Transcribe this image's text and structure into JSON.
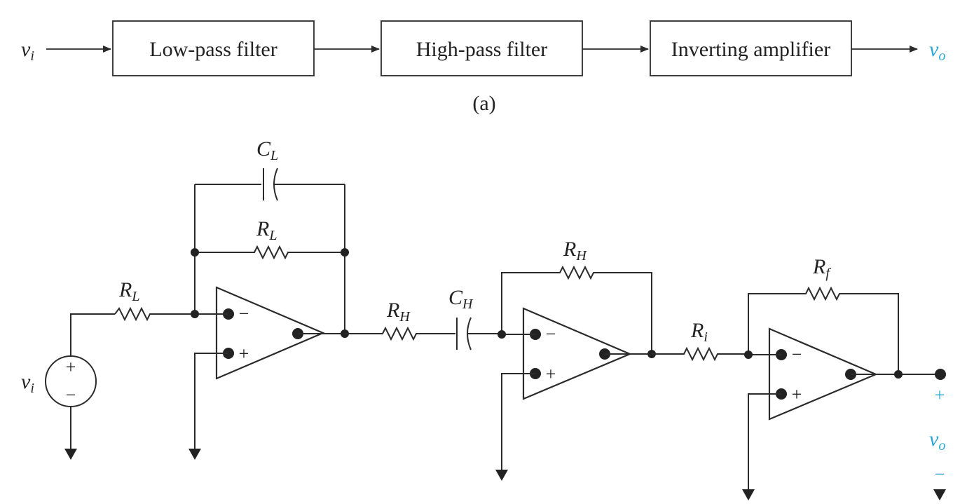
{
  "accent_color": "#29a8d6",
  "part_a": {
    "input_symbol": "v",
    "input_sub": "i",
    "blocks": [
      {
        "label": "Low-pass filter"
      },
      {
        "label": "High-pass filter"
      },
      {
        "label": "Inverting amplifier"
      }
    ],
    "output_symbol": "v",
    "output_sub": "o",
    "caption": "(a)"
  },
  "part_b": {
    "source": {
      "symbol": "v",
      "sub": "i",
      "plus": "+",
      "minus": "−"
    },
    "components": {
      "CL": {
        "symbol": "C",
        "sub": "L"
      },
      "RL_feedback": {
        "symbol": "R",
        "sub": "L"
      },
      "RL_input": {
        "symbol": "R",
        "sub": "L"
      },
      "RH_series": {
        "symbol": "R",
        "sub": "H"
      },
      "CH": {
        "symbol": "C",
        "sub": "H"
      },
      "RH_feedback": {
        "symbol": "R",
        "sub": "H"
      },
      "Ri": {
        "symbol": "R",
        "sub": "i"
      },
      "Rf": {
        "symbol": "R",
        "sub": "f"
      }
    },
    "opamp_signs": {
      "minus": "−",
      "plus": "+"
    },
    "output": {
      "plus": "+",
      "symbol": "v",
      "sub": "o",
      "minus": "−"
    }
  }
}
